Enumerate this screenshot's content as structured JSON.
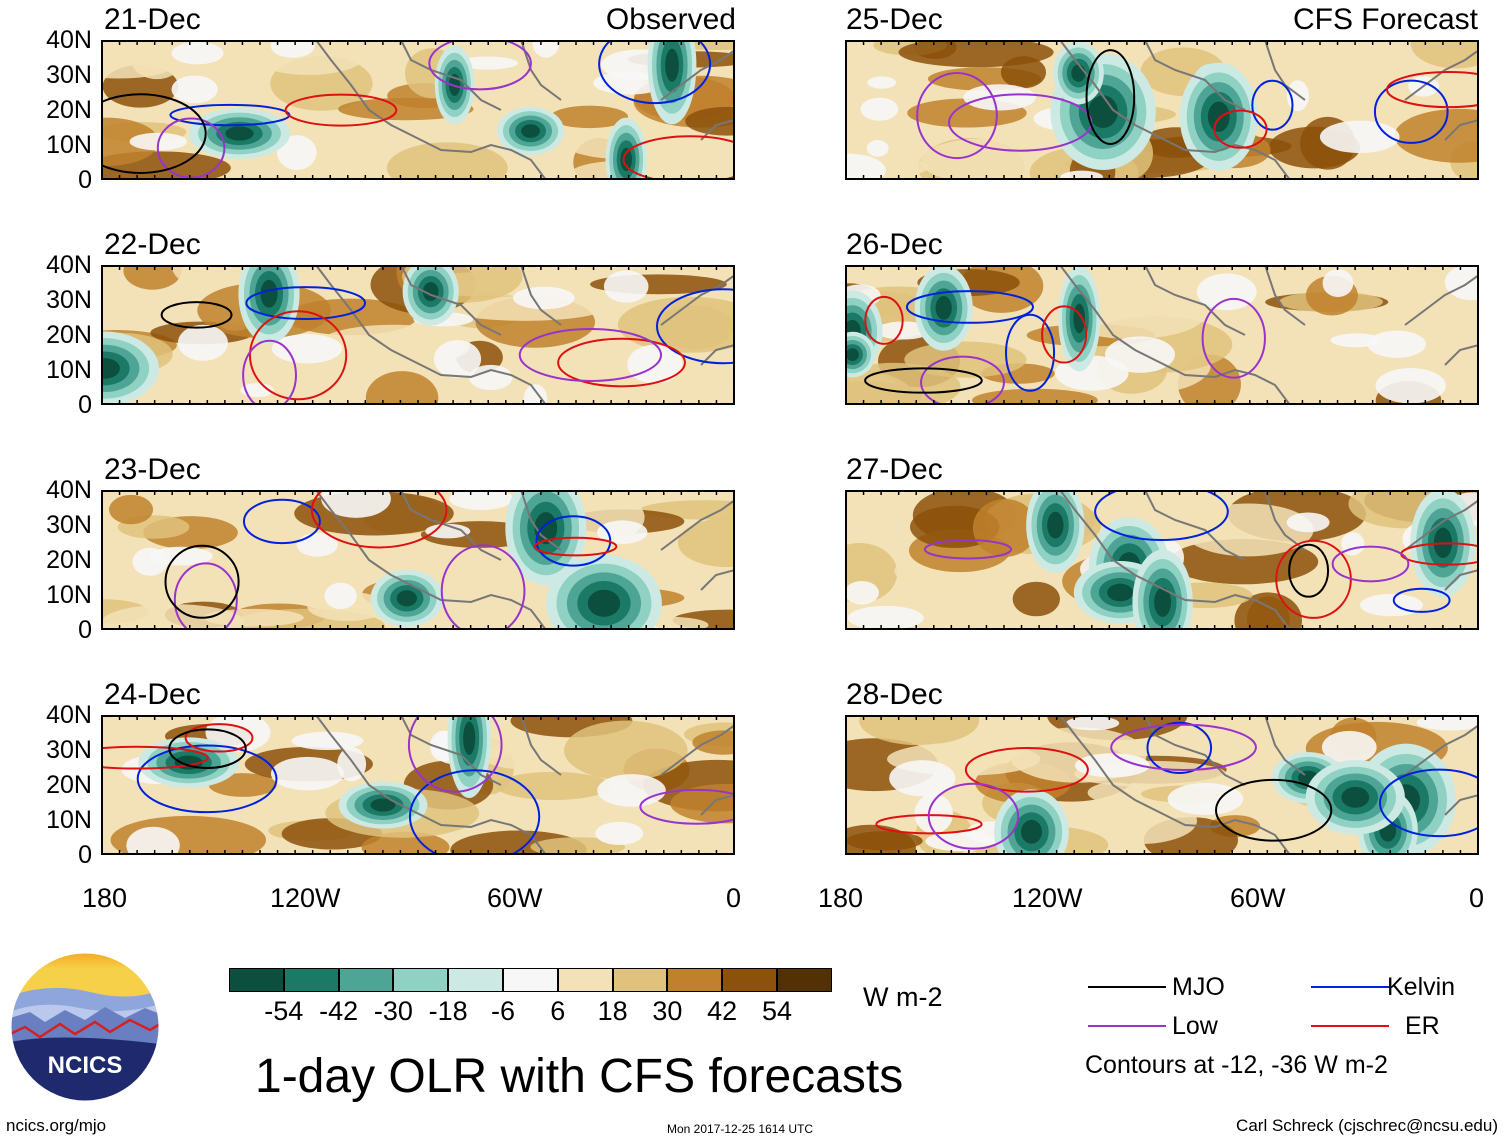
{
  "panels": {
    "observed_label": "Observed",
    "forecast_label": "CFS Forecast",
    "left_dates": [
      "21-Dec",
      "22-Dec",
      "23-Dec",
      "24-Dec"
    ],
    "right_dates": [
      "25-Dec",
      "26-Dec",
      "27-Dec",
      "28-Dec"
    ]
  },
  "axes": {
    "lat_ticks": [
      "40N",
      "30N",
      "20N",
      "10N",
      "0"
    ],
    "lon_ticks": [
      "180",
      "120W",
      "60W",
      "0"
    ]
  },
  "colorbar": {
    "unit": "W m-2",
    "labels": [
      "-54",
      "-42",
      "-30",
      "-18",
      "-6",
      "6",
      "18",
      "30",
      "42",
      "54"
    ],
    "colors": [
      "#0d4f3e",
      "#1a7a66",
      "#4ea595",
      "#8fd1c2",
      "#cceae3",
      "#f7f7f7",
      "#f3e2b7",
      "#dfc27d",
      "#bf812d",
      "#8c510a",
      "#543005"
    ]
  },
  "legend": {
    "mjo": "MJO",
    "kelvin": "Kelvin",
    "low": "Low",
    "er": "ER",
    "contour_note": "Contours at -12, -36 W m-2",
    "colors": {
      "mjo": "#000000",
      "kelvin": "#0022dd",
      "low": "#9933cc",
      "er": "#dd1111"
    }
  },
  "title": "1-day OLR with CFS forecasts",
  "footer": {
    "url": "ncics.org/mjo",
    "timestamp": "Mon 2017-12-25 1614 UTC",
    "author": "Carl Schreck (cjschrec@ncsu.edu)"
  },
  "logo": {
    "text": "NCICS"
  },
  "chart_data": {
    "type": "heatmap",
    "title": "1-day OLR with CFS forecasts",
    "variable": "OLR anomaly",
    "unit": "W m-2",
    "lon_range": [
      -180,
      0
    ],
    "lat_range": [
      0,
      40
    ],
    "xticks": [
      "180",
      "120W",
      "60W",
      "0"
    ],
    "yticks": [
      "40N",
      "30N",
      "20N",
      "10N",
      "0"
    ],
    "color_levels": [
      -54,
      -42,
      -30,
      -18,
      -6,
      6,
      18,
      30,
      42,
      54
    ],
    "contour_levels": [
      -12,
      -36
    ],
    "contour_types": [
      "MJO",
      "Kelvin",
      "Low",
      "ER"
    ],
    "observed_panels": [
      "21-Dec",
      "22-Dec",
      "23-Dec",
      "24-Dec"
    ],
    "forecast_panels": [
      "25-Dec",
      "26-Dec",
      "27-Dec",
      "28-Dec"
    ]
  }
}
